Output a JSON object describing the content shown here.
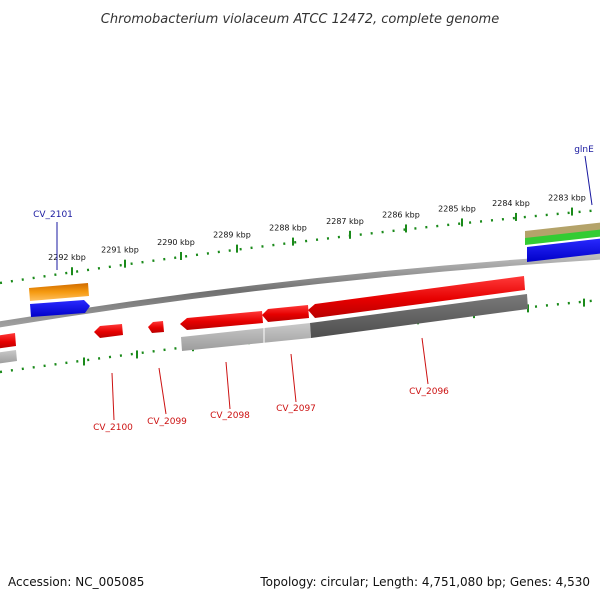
{
  "title": "Chromobacterium violaceum ATCC 12472, complete genome",
  "accession": "Accession: NC_005085",
  "summary": "Topology: circular; Length: 4,751,080 bp; Genes: 4,530",
  "colors": {
    "plus_ticks": "#1a8a1a",
    "minus_ticks": "#1a8a1a",
    "forward_gene_label": "#1a1aa0",
    "reverse_gene_label": "#cc1111",
    "backbone": "#8a8a8a"
  },
  "axis": {
    "ticks": [
      {
        "label": "2292 kbp"
      },
      {
        "label": "2291 kbp"
      },
      {
        "label": "2290 kbp"
      },
      {
        "label": "2289 kbp"
      },
      {
        "label": "2288 kbp"
      },
      {
        "label": "2287 kbp"
      },
      {
        "label": "2286 kbp"
      },
      {
        "label": "2285 kbp"
      },
      {
        "label": "2284 kbp"
      },
      {
        "label": "2283 kbp"
      }
    ]
  },
  "genes_forward": [
    {
      "name": "CV_2101"
    },
    {
      "name": "glnE"
    }
  ],
  "genes_reverse": [
    {
      "name": "CV_2100"
    },
    {
      "name": "CV_2099"
    },
    {
      "name": "CV_2098"
    },
    {
      "name": "CV_2097"
    },
    {
      "name": "CV_2096"
    }
  ]
}
